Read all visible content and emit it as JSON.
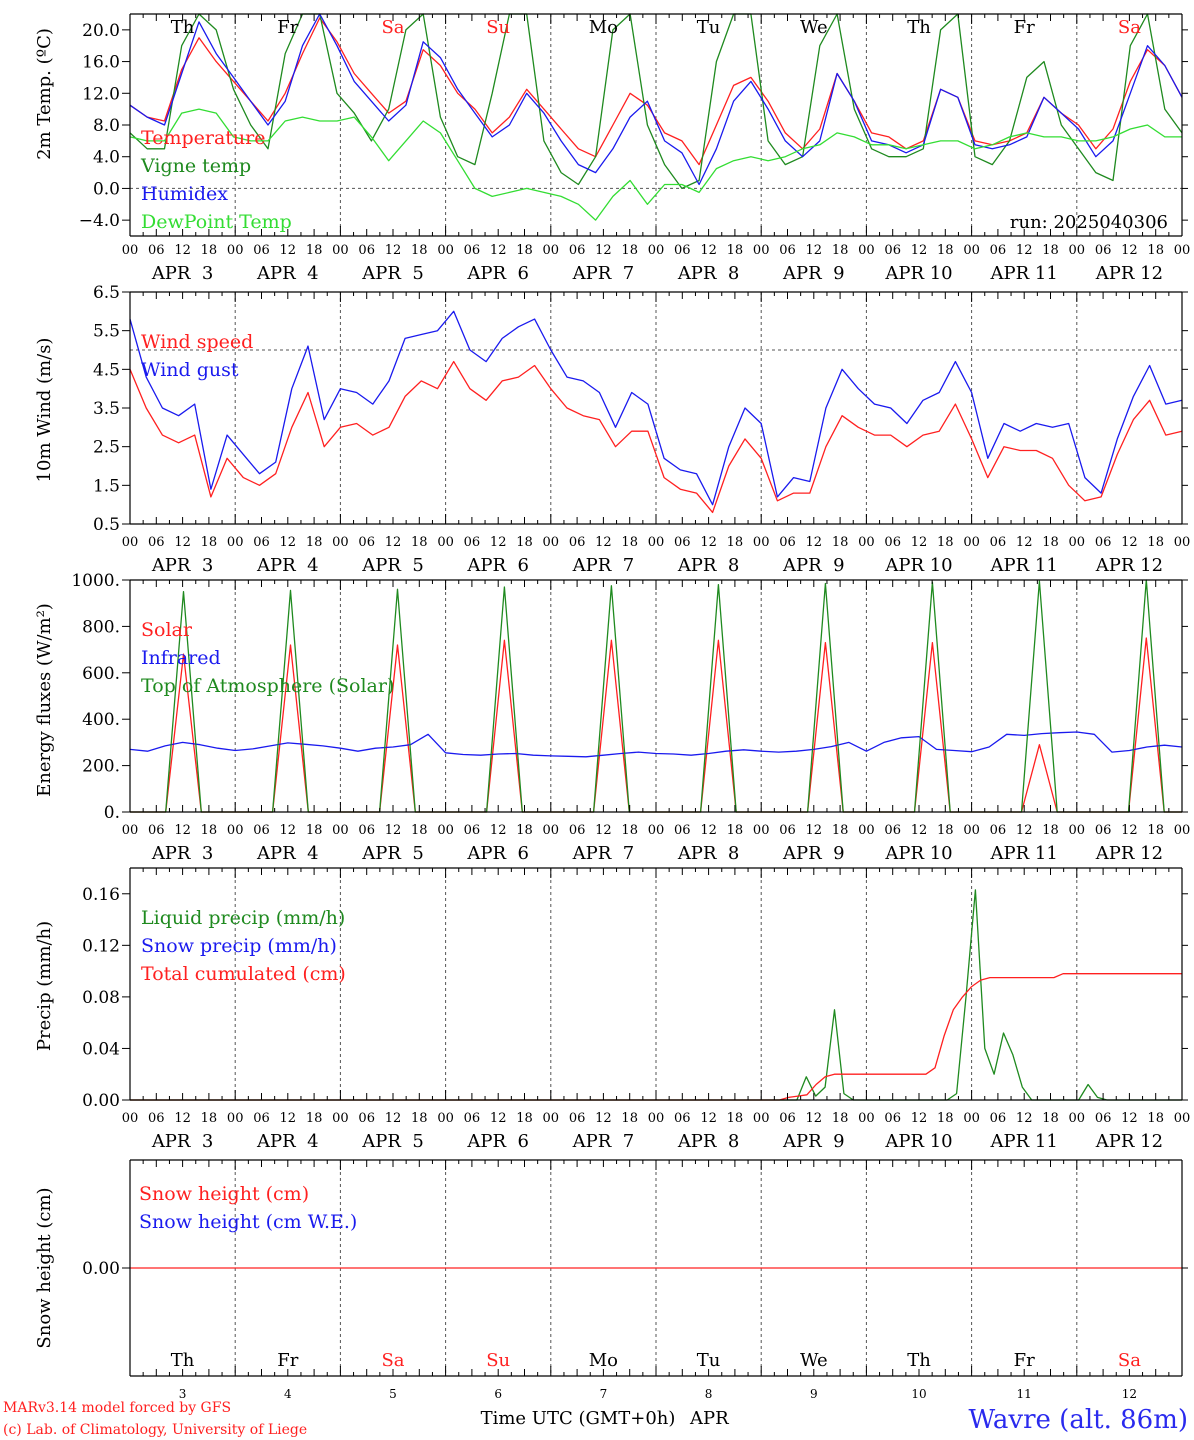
{
  "colors": {
    "red": "#ff2020",
    "blue": "#1a1aee",
    "darkgreen": "#1f8a1f",
    "lightgreen": "#33dd33",
    "axis": "#000000",
    "grid": "#555555"
  },
  "meta": {
    "run": "run: 2025040306",
    "station": "Wavre (alt. 86m)",
    "credit_line1": "MARv3.14 model forced by GFS",
    "credit_line2": "(c) Lab. of Climatology, University of Liege",
    "time_label": "Time UTC (GMT+0h)",
    "month_label": "APR"
  },
  "days": [
    {
      "abbr": "Th",
      "date": "APR  3",
      "num": "3",
      "weekend": false
    },
    {
      "abbr": "Fr",
      "date": "APR  4",
      "num": "4",
      "weekend": false
    },
    {
      "abbr": "Sa",
      "date": "APR  5",
      "num": "5",
      "weekend": true
    },
    {
      "abbr": "Su",
      "date": "APR  6",
      "num": "6",
      "weekend": true
    },
    {
      "abbr": "Mo",
      "date": "APR  7",
      "num": "7",
      "weekend": false
    },
    {
      "abbr": "Tu",
      "date": "APR  8",
      "num": "8",
      "weekend": false
    },
    {
      "abbr": "We",
      "date": "APR  9",
      "num": "9",
      "weekend": false
    },
    {
      "abbr": "Th",
      "date": "APR 10",
      "num": "10",
      "weekend": false
    },
    {
      "abbr": "Fr",
      "date": "APR 11",
      "num": "11",
      "weekend": false
    },
    {
      "abbr": "Sa",
      "date": "APR 12",
      "num": "12",
      "weekend": true
    }
  ],
  "hour_labels": [
    "00",
    "06",
    "12",
    "18"
  ],
  "chart_data": [
    {
      "id": "temp",
      "type": "line",
      "ylabel": "2m Temp. (ºC)",
      "ylim": [
        -6,
        22
      ],
      "yticks": [
        -4,
        0,
        4,
        8,
        12,
        16,
        20
      ],
      "ytick_labels": [
        "−4.0",
        "0.0",
        "4.0",
        "8.0",
        "12.0",
        "16.0",
        "20.0"
      ],
      "ref_lines": [
        0
      ],
      "x_step_hours": 6,
      "series": [
        {
          "name": "Temperature",
          "color": "#ff2020",
          "values": [
            10.5,
            9,
            8.5,
            15,
            19,
            16,
            13.5,
            11,
            8.5,
            12,
            17,
            21.5,
            18.5,
            14.5,
            12,
            9.5,
            11,
            17.5,
            15.5,
            12,
            10,
            7,
            9,
            12.5,
            10,
            7.5,
            5,
            4,
            8,
            12,
            10.5,
            7,
            6,
            3,
            8,
            13,
            14,
            11,
            7,
            5,
            7.5,
            14.5,
            11,
            7,
            6.5,
            5,
            6,
            12.5,
            11.5,
            6,
            5.5,
            6,
            7,
            11.5,
            9.5,
            8,
            5,
            7.5,
            13.5,
            17.5,
            15.5,
            11.5
          ]
        },
        {
          "name": "Vigne temp",
          "color": "#1f8a1f",
          "values": [
            7,
            5,
            5,
            18,
            22,
            20,
            12.5,
            8,
            5,
            17,
            22,
            22,
            12,
            9.5,
            6,
            10,
            20,
            22,
            9,
            4,
            3,
            12,
            22,
            22,
            6,
            2,
            0.5,
            4,
            20,
            22,
            8,
            3,
            0,
            1,
            16,
            22,
            22,
            6,
            3,
            4,
            18,
            22,
            10,
            5,
            4,
            4,
            5,
            20,
            22,
            4,
            3,
            6,
            14,
            16,
            8,
            5,
            2,
            1,
            18,
            22,
            10,
            7
          ]
        },
        {
          "name": "Humidex",
          "color": "#1a1aee",
          "values": [
            10.5,
            9,
            8,
            14.5,
            21,
            17,
            14,
            11,
            8,
            11,
            18,
            22,
            18,
            13.5,
            11,
            8.5,
            10.5,
            18.5,
            16.5,
            12.5,
            9.5,
            6.5,
            8,
            12,
            9.5,
            6,
            3,
            2,
            5,
            9,
            11,
            6,
            4.5,
            0.5,
            5,
            11,
            13.5,
            10,
            6,
            4,
            6,
            14.5,
            11,
            6,
            5.5,
            4.5,
            5.5,
            12.5,
            11.5,
            5.5,
            5,
            5.5,
            6.5,
            11.5,
            9.5,
            7.5,
            4,
            6,
            12,
            18,
            15.5,
            11.5
          ]
        },
        {
          "name": "DewPoint Temp",
          "color": "#33dd33",
          "values": [
            6.5,
            6,
            6,
            9.5,
            10,
            9.5,
            6.5,
            6,
            6,
            8.5,
            9,
            8.5,
            8.5,
            9,
            6.5,
            3.5,
            6,
            8.5,
            7,
            3.5,
            0,
            -1,
            -0.5,
            0,
            -0.5,
            -1,
            -2,
            -4,
            -1,
            1,
            -2,
            0.5,
            0.5,
            -0.5,
            2.5,
            3.5,
            4,
            3.5,
            4,
            5,
            5.5,
            7,
            6.5,
            5.5,
            5.5,
            5,
            5.5,
            6,
            6,
            5,
            5.5,
            6.5,
            7,
            6.5,
            6.5,
            6,
            6,
            6.5,
            7.5,
            8,
            6.5,
            6.5
          ]
        }
      ]
    },
    {
      "id": "wind",
      "type": "line",
      "ylabel": "10m Wind (m/s)",
      "ylim": [
        0.5,
        6.5
      ],
      "yticks": [
        0.5,
        1.5,
        2.5,
        3.5,
        4.5,
        5.5,
        6.5
      ],
      "ytick_labels": [
        "0.5",
        "1.5",
        "2.5",
        "3.5",
        "4.5",
        "5.5",
        "6.5"
      ],
      "ref_lines": [
        5.0
      ],
      "x_step_hours": 6,
      "series": [
        {
          "name": "Wind speed",
          "color": "#ff2020",
          "values": [
            4.5,
            3.5,
            2.8,
            2.6,
            2.8,
            1.2,
            2.2,
            1.7,
            1.5,
            1.8,
            3,
            3.9,
            2.5,
            3,
            3.1,
            2.8,
            3,
            3.8,
            4.2,
            4,
            4.7,
            4,
            3.7,
            4.2,
            4.3,
            4.6,
            4,
            3.5,
            3.3,
            3.2,
            2.5,
            2.9,
            2.9,
            1.7,
            1.4,
            1.3,
            0.8,
            2,
            2.7,
            2.2,
            1.1,
            1.3,
            1.3,
            2.5,
            3.3,
            3,
            2.8,
            2.8,
            2.5,
            2.8,
            2.9,
            3.6,
            2.7,
            1.7,
            2.5,
            2.4,
            2.4,
            2.2,
            1.5,
            1.1,
            1.2,
            2.3,
            3.2,
            3.7,
            2.8,
            2.9
          ]
        },
        {
          "name": "Wind gust",
          "color": "#1a1aee",
          "values": [
            5.8,
            4.3,
            3.5,
            3.3,
            3.6,
            1.4,
            2.8,
            2.3,
            1.8,
            2.1,
            4,
            5.1,
            3.2,
            4,
            3.9,
            3.6,
            4.2,
            5.3,
            5.4,
            5.5,
            6,
            5,
            4.7,
            5.3,
            5.6,
            5.8,
            5,
            4.3,
            4.2,
            3.9,
            3,
            3.9,
            3.6,
            2.2,
            1.9,
            1.8,
            1,
            2.5,
            3.5,
            3.1,
            1.2,
            1.7,
            1.6,
            3.5,
            4.5,
            4,
            3.6,
            3.5,
            3.1,
            3.7,
            3.9,
            4.7,
            3.9,
            2.2,
            3.1,
            2.9,
            3.1,
            3,
            3.1,
            1.7,
            1.3,
            2.7,
            3.8,
            4.6,
            3.6,
            3.7
          ]
        }
      ]
    },
    {
      "id": "energy",
      "type": "line",
      "ylabel": "Energy fluxes (W/m²)",
      "ylim": [
        0,
        1000
      ],
      "yticks": [
        0,
        200,
        400,
        600,
        800,
        1000
      ],
      "ytick_labels": [
        "0.",
        "200.",
        "400.",
        "600.",
        "800.",
        "1000."
      ],
      "ref_lines": [],
      "x_step_hours": 6,
      "series": [
        {
          "name": "Solar",
          "color": "#ff2020",
          "values": [
            0,
            0,
            0,
            680,
            0,
            0,
            0,
            0,
            0,
            720,
            0,
            0,
            0,
            0,
            0,
            720,
            0,
            0,
            0,
            0,
            0,
            740,
            0,
            0,
            0,
            0,
            0,
            740,
            0,
            0,
            0,
            0,
            0,
            740,
            0,
            0,
            0,
            0,
            0,
            730,
            0,
            0,
            0,
            0,
            0,
            730,
            0,
            0,
            0,
            0,
            0,
            290,
            0,
            0,
            0,
            0,
            0,
            750,
            0,
            0
          ]
        },
        {
          "name": "Infrared",
          "color": "#1a1aee",
          "values": [
            270,
            262,
            285,
            300,
            290,
            275,
            265,
            272,
            285,
            298,
            292,
            285,
            275,
            262,
            275,
            280,
            290,
            335,
            255,
            248,
            245,
            250,
            252,
            245,
            242,
            240,
            238,
            245,
            252,
            258,
            252,
            250,
            245,
            252,
            262,
            268,
            262,
            258,
            262,
            270,
            282,
            300,
            262,
            300,
            320,
            325,
            270,
            265,
            260,
            280,
            335,
            330,
            338,
            342,
            345,
            335,
            258,
            265,
            280,
            288,
            280
          ]
        },
        {
          "name": "Top of Atmosphere (Solar)",
          "color": "#1f8a1f",
          "values": [
            0,
            0,
            0,
            950,
            0,
            0,
            0,
            0,
            0,
            955,
            0,
            0,
            0,
            0,
            0,
            960,
            0,
            0,
            0,
            0,
            0,
            970,
            0,
            0,
            0,
            0,
            0,
            975,
            0,
            0,
            0,
            0,
            0,
            980,
            0,
            0,
            0,
            0,
            0,
            985,
            0,
            0,
            0,
            0,
            0,
            990,
            0,
            0,
            0,
            0,
            0,
            995,
            0,
            0,
            0,
            0,
            0,
            1000,
            0,
            0
          ]
        }
      ]
    },
    {
      "id": "precip",
      "type": "line",
      "ylabel": "Precip (mm/h)",
      "ylim": [
        0,
        0.18
      ],
      "yticks": [
        0,
        0.04,
        0.08,
        0.12,
        0.16
      ],
      "ytick_labels": [
        "0.00",
        "0.04",
        "0.08",
        "0.12",
        "0.16"
      ],
      "ref_lines": [],
      "x_step_hours": 3,
      "series": [
        {
          "name": "Liquid precip (mm/h)",
          "color": "#1f8a1f",
          "values": [
            0,
            0,
            0,
            0,
            0,
            0,
            0,
            0,
            0,
            0,
            0,
            0,
            0,
            0,
            0,
            0,
            0,
            0,
            0,
            0,
            0,
            0,
            0,
            0,
            0,
            0,
            0,
            0,
            0,
            0,
            0,
            0,
            0,
            0,
            0,
            0,
            0,
            0,
            0,
            0,
            0,
            0,
            0,
            0,
            0,
            0,
            0,
            0,
            0,
            0,
            0,
            0,
            0,
            0,
            0,
            0,
            0,
            0,
            0,
            0,
            0,
            0,
            0,
            0,
            0,
            0,
            0,
            0,
            0,
            0,
            0,
            0,
            0.018,
            0.003,
            0.01,
            0.07,
            0.005,
            0,
            0,
            0,
            0,
            0,
            0,
            0,
            0,
            0,
            0,
            0,
            0.005,
            0.08,
            0.163,
            0.04,
            0.02,
            0.052,
            0.035,
            0.01,
            0,
            0,
            0,
            0,
            0,
            0,
            0.012,
            0.002,
            0,
            0,
            0,
            0,
            0,
            0,
            0,
            0,
            0
          ]
        },
        {
          "name": "Snow precip (mm/h)",
          "color": "#1a1aee",
          "values": []
        },
        {
          "name": "Total cumulated (cm)",
          "color": "#ff2020",
          "values": [
            0,
            0,
            0,
            0,
            0,
            0,
            0,
            0,
            0,
            0,
            0,
            0,
            0,
            0,
            0,
            0,
            0,
            0,
            0,
            0,
            0,
            0,
            0,
            0,
            0,
            0,
            0,
            0,
            0,
            0,
            0,
            0,
            0,
            0,
            0,
            0,
            0,
            0,
            0,
            0,
            0,
            0,
            0,
            0,
            0,
            0,
            0,
            0,
            0,
            0,
            0,
            0,
            0,
            0,
            0,
            0,
            0,
            0,
            0,
            0,
            0,
            0,
            0,
            0,
            0,
            0,
            0,
            0,
            0,
            0,
            0,
            0,
            0.002,
            0.003,
            0.004,
            0.012,
            0.018,
            0.02,
            0.02,
            0.02,
            0.02,
            0.02,
            0.02,
            0.02,
            0.02,
            0.02,
            0.02,
            0.02,
            0.025,
            0.05,
            0.07,
            0.08,
            0.088,
            0.093,
            0.095,
            0.095,
            0.095,
            0.095,
            0.095,
            0.095,
            0.095,
            0.095,
            0.098,
            0.098,
            0.098,
            0.098,
            0.098,
            0.098,
            0.098,
            0.098,
            0.098,
            0.098,
            0.098,
            0.098,
            0.098,
            0.098
          ]
        }
      ]
    },
    {
      "id": "snow",
      "type": "line",
      "ylabel": "Snow height (cm)",
      "ylim": [
        -1,
        1
      ],
      "yticks": [
        0
      ],
      "ytick_labels": [
        "0.00"
      ],
      "ref_lines": [],
      "x_step_hours": 6,
      "series": [
        {
          "name": "Snow height (cm)",
          "color": "#ff2020",
          "values": [
            0,
            0,
            0,
            0,
            0,
            0,
            0,
            0,
            0,
            0,
            0,
            0,
            0,
            0,
            0,
            0,
            0,
            0,
            0,
            0,
            0,
            0,
            0,
            0,
            0,
            0,
            0,
            0,
            0,
            0,
            0,
            0,
            0,
            0,
            0,
            0,
            0,
            0,
            0,
            0,
            0,
            0,
            0,
            0,
            0,
            0,
            0,
            0,
            0,
            0,
            0,
            0,
            0,
            0,
            0,
            0,
            0,
            0,
            0,
            0,
            0
          ]
        },
        {
          "name": "Snow height (cm W.E.)",
          "color": "#1a1aee",
          "values": []
        }
      ]
    }
  ]
}
